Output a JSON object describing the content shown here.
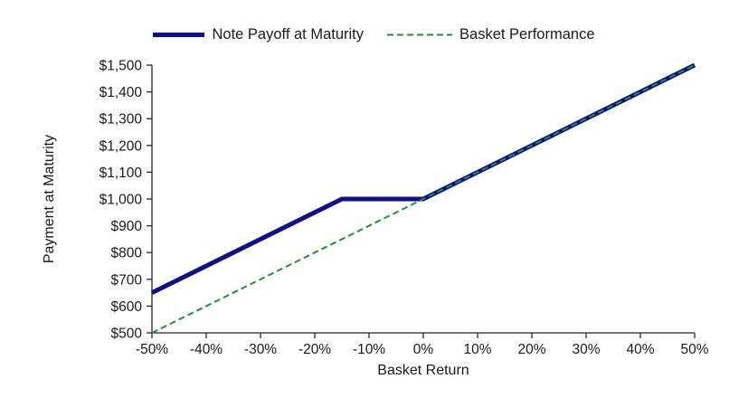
{
  "chart_data": {
    "type": "line",
    "title": "",
    "xlabel": "Basket Return",
    "ylabel": "Payment at Maturity",
    "xlim": [
      -50,
      50
    ],
    "ylim": [
      500,
      1500
    ],
    "grid": false,
    "legend_position": "top-center",
    "x_ticks": {
      "values": [
        -50,
        -40,
        -30,
        -20,
        -10,
        0,
        10,
        20,
        30,
        40,
        50
      ],
      "labels": [
        "-50%",
        "-40%",
        "-30%",
        "-20%",
        "-10%",
        "0%",
        "10%",
        "20%",
        "30%",
        "40%",
        "50%"
      ]
    },
    "y_ticks": {
      "values": [
        500,
        600,
        700,
        800,
        900,
        1000,
        1100,
        1200,
        1300,
        1400,
        1500
      ],
      "labels": [
        "$500",
        "$600",
        "$700",
        "$800",
        "$900",
        "$1,000",
        "$1,100",
        "$1,200",
        "$1,300",
        "$1,400",
        "$1,500"
      ]
    },
    "series": [
      {
        "name": "Note Payoff at Maturity",
        "color": "#10108e",
        "line_width": 5,
        "dash": null,
        "points": [
          [
            -50,
            650
          ],
          [
            -15,
            1000
          ],
          [
            0,
            1000
          ],
          [
            50,
            1500
          ]
        ]
      },
      {
        "name": "Basket Performance",
        "color": "#1f9138",
        "line_width": 2,
        "dash": "7 4",
        "points": [
          [
            -50,
            500
          ],
          [
            50,
            1500
          ]
        ]
      }
    ],
    "axis_color": "#262626",
    "text_color": "#1a1a1a"
  }
}
